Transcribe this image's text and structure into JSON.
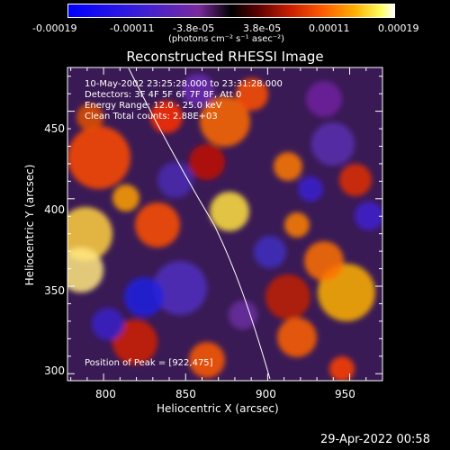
{
  "colorbar": {
    "tick_labels": [
      "-0.00019",
      "-0.00011",
      "-3.8e-05",
      "3.8e-05",
      "0.00011",
      "0.00019"
    ],
    "units_label": "(photons cm⁻² s⁻¹ asec⁻²)"
  },
  "title": "Reconstructed RHESSI Image",
  "overlay": {
    "time_range": "10-May-2002 23:25:28.000 to 23:31:28.000",
    "detectors": "Detectors: 3F 4F 5F 6F 7F 8F, Att 0",
    "energy": "Energy Range: 12.0 - 25.0 keV",
    "method": "Clean     Total counts: 2.88E+03",
    "peak": "Position of Peak = [922,475]"
  },
  "axes": {
    "xlabel": "Heliocentric X (arcsec)",
    "ylabel": "Heliocentric Y (arcsec)",
    "x_ticks": [
      "800",
      "850",
      "900",
      "950"
    ],
    "y_ticks": [
      "300",
      "350",
      "400",
      "450"
    ],
    "x_range": [
      778,
      970
    ],
    "y_range": [
      296,
      475
    ]
  },
  "footer_timestamp": "29-Apr-2022 00:58"
}
